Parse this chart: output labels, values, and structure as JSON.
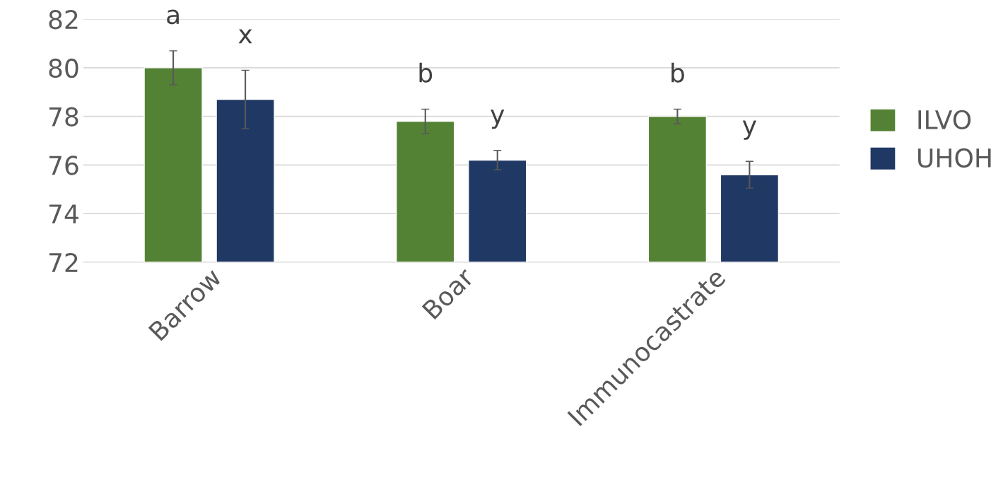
{
  "chart_data": {
    "type": "bar",
    "categories": [
      "Barrow",
      "Boar",
      "Immunocastrate"
    ],
    "series": [
      {
        "name": "ILVO",
        "color": "#548235",
        "values": [
          80.0,
          77.8,
          78.0
        ],
        "errors": [
          0.7,
          0.5,
          0.3
        ],
        "value_labels": [
          "a",
          "b",
          "b"
        ]
      },
      {
        "name": "UHOH",
        "color": "#1f3864",
        "values": [
          78.7,
          76.2,
          75.6
        ],
        "errors": [
          1.2,
          0.4,
          0.55
        ],
        "value_labels": [
          "x",
          "y",
          "y"
        ]
      }
    ],
    "ylim": [
      72,
      82
    ],
    "yticks": [
      72,
      74,
      76,
      78,
      80,
      82
    ],
    "grid": "y",
    "legend": "right"
  }
}
